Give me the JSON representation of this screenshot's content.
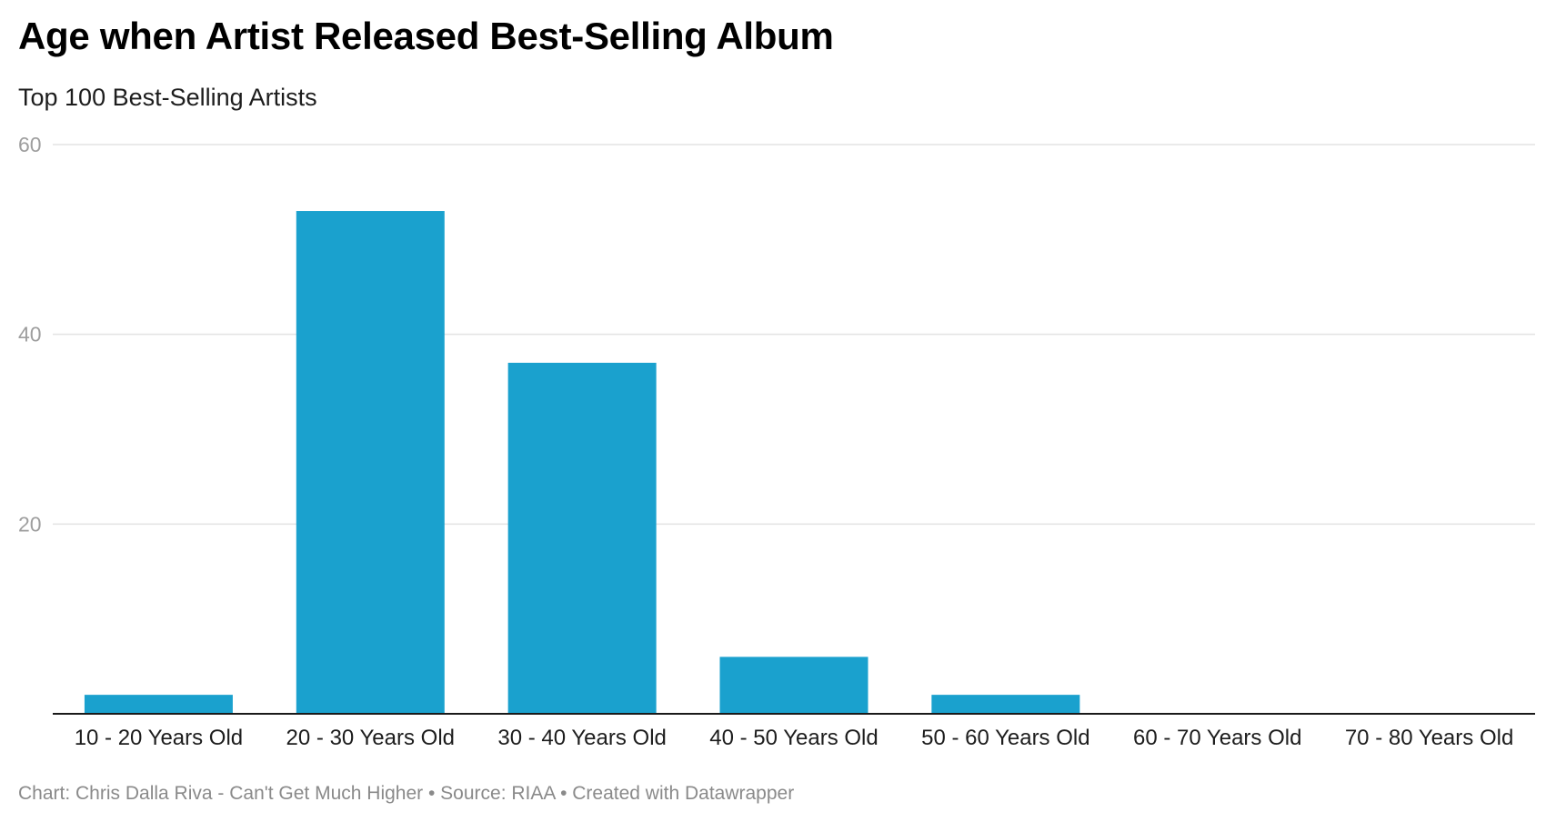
{
  "header": {
    "title": "Age when Artist Released Best-Selling Album",
    "subtitle": "Top 100 Best-Selling Artists"
  },
  "footer": {
    "text": "Chart: Chris Dalla Riva - Can't Get Much Higher • Source: RIAA • Created with Datawrapper"
  },
  "colors": {
    "bar": "#1aa1ce",
    "grid": "#e3e3e3",
    "baseline": "#1a1a1a"
  },
  "chart_data": {
    "type": "bar",
    "title": "Age when Artist Released Best-Selling Album",
    "subtitle": "Top 100 Best-Selling Artists",
    "xlabel": "",
    "ylabel": "",
    "categories": [
      "10 - 20 Years Old",
      "20 - 30 Years Old",
      "30 - 40 Years Old",
      "40 - 50 Years Old",
      "50 - 60 Years Old",
      "60 - 70 Years Old",
      "70 - 80 Years Old"
    ],
    "values": [
      2,
      53,
      37,
      6,
      2,
      0,
      0
    ],
    "ylim": [
      0,
      60
    ],
    "yticks": [
      20,
      40,
      60
    ],
    "grid": true,
    "legend": "none"
  }
}
